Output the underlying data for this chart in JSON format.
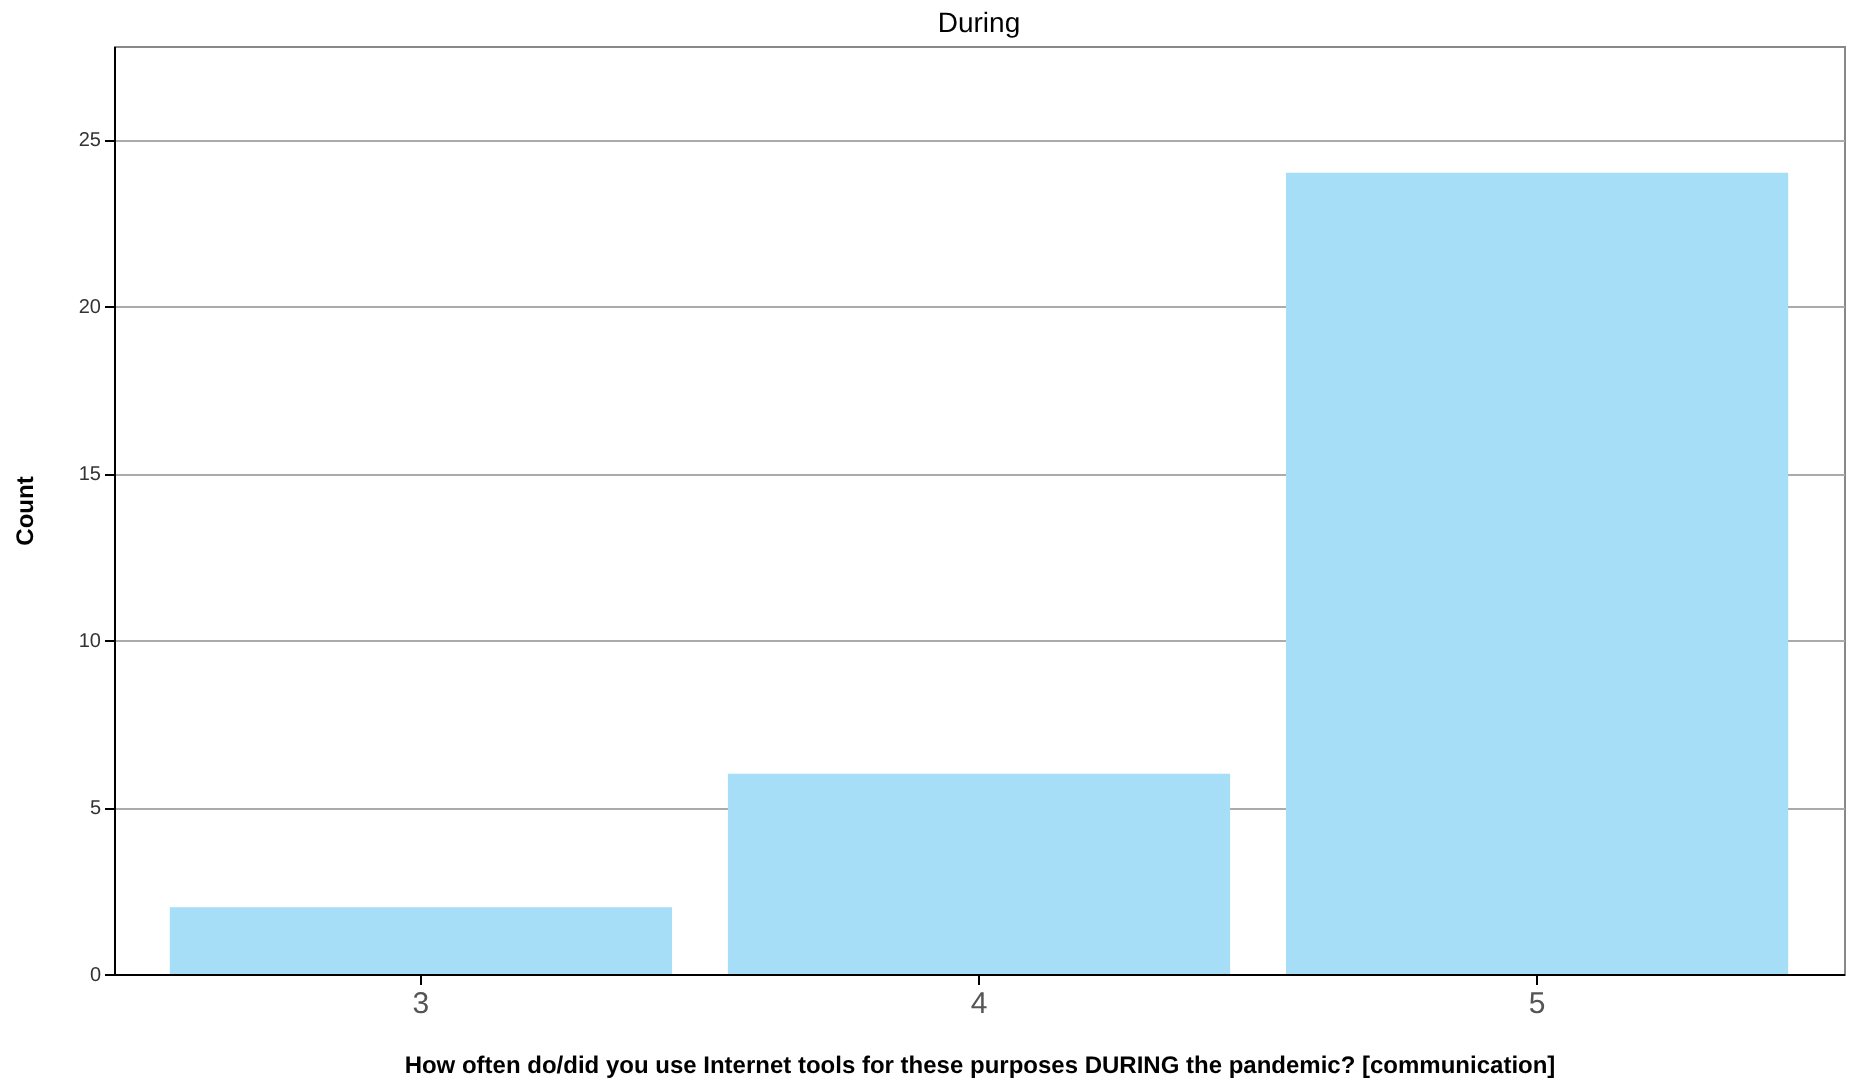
{
  "chart_data": {
    "type": "bar",
    "title": "During",
    "xlabel": "How often do/did you use Internet tools for these purposes DURING the pandemic?  [communication]",
    "ylabel": "Count",
    "categories": [
      "3",
      "4",
      "5"
    ],
    "values": [
      2,
      6,
      24
    ],
    "color": "#a6ddf7",
    "ylim": [
      0,
      27.8
    ],
    "yticks": [
      0,
      5,
      10,
      15,
      20,
      25
    ],
    "grid": "y"
  }
}
